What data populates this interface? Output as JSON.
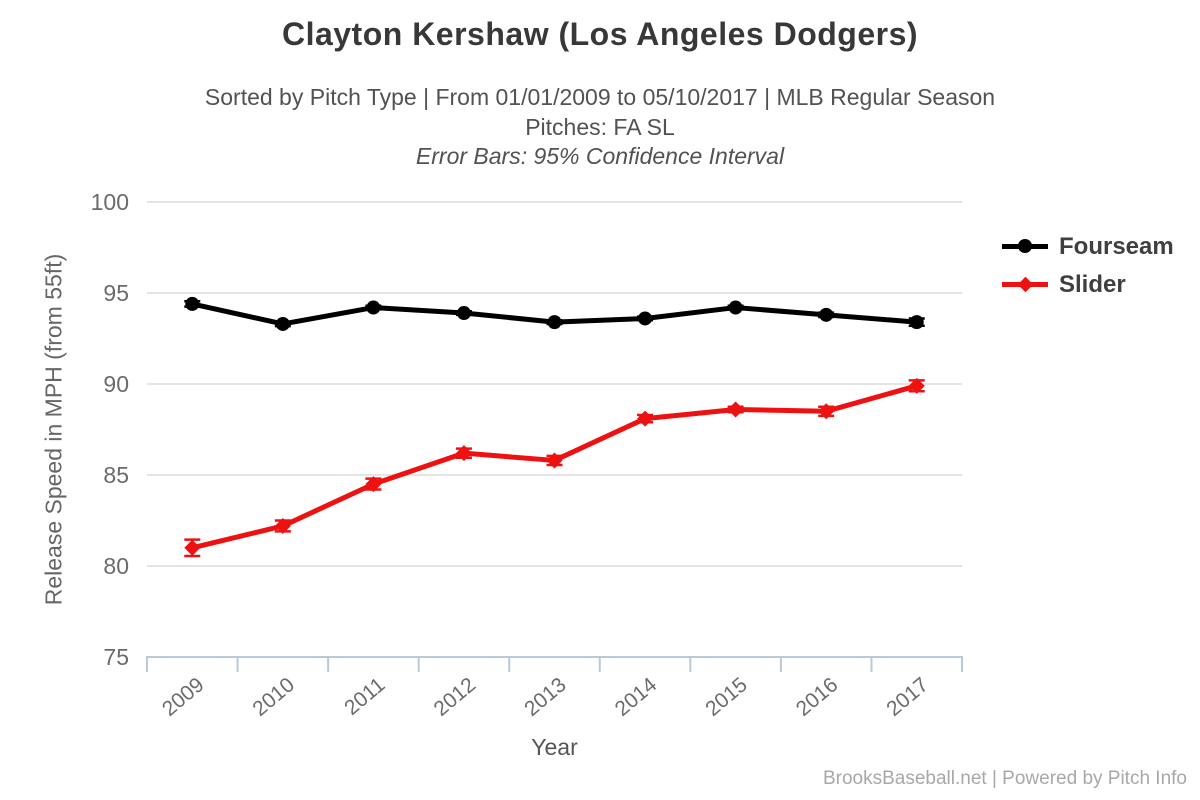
{
  "chart_data": {
    "type": "line",
    "title": "Clayton Kershaw (Los Angeles Dodgers)",
    "subtitle": "Sorted by Pitch Type | From 01/01/2009 to 05/10/2017 | MLB Regular Season",
    "subtitle2": "Pitches: FA SL",
    "subtitle3": "Error Bars: 95% Confidence Interval",
    "xlabel": "Year",
    "ylabel": "Release Speed in MPH (from 55ft)",
    "categories": [
      "2009",
      "2010",
      "2011",
      "2012",
      "2013",
      "2014",
      "2015",
      "2016",
      "2017"
    ],
    "ylim": [
      75,
      100
    ],
    "yticks": [
      75,
      80,
      85,
      90,
      95,
      100
    ],
    "grid": true,
    "legend_position": "right",
    "error_bars": "95% Confidence Interval",
    "series": [
      {
        "name": "Fourseam",
        "color": "#000000",
        "marker": "circle",
        "values": [
          94.4,
          93.3,
          94.2,
          93.9,
          93.4,
          93.6,
          94.2,
          93.8,
          93.4
        ],
        "errors": [
          0.15,
          0.12,
          0.1,
          0.1,
          0.1,
          0.1,
          0.1,
          0.12,
          0.2
        ]
      },
      {
        "name": "Slider",
        "color": "#ee1111",
        "marker": "diamond",
        "values": [
          81.0,
          82.2,
          84.5,
          86.2,
          85.8,
          88.1,
          88.6,
          88.5,
          89.9
        ],
        "errors": [
          0.45,
          0.3,
          0.3,
          0.25,
          0.25,
          0.2,
          0.15,
          0.25,
          0.3
        ]
      }
    ]
  },
  "footer": {
    "credit": "BrooksBaseball.net | Powered by Pitch Info"
  },
  "colors": {
    "grid": "#e4e4e4",
    "axis": "#b8cada",
    "tick_label": "#6b6b6b",
    "title_text": "#383838",
    "subtitle_text": "#525252",
    "legend_text": "#3f3f3f",
    "footer_text": "#a8a8a8"
  }
}
